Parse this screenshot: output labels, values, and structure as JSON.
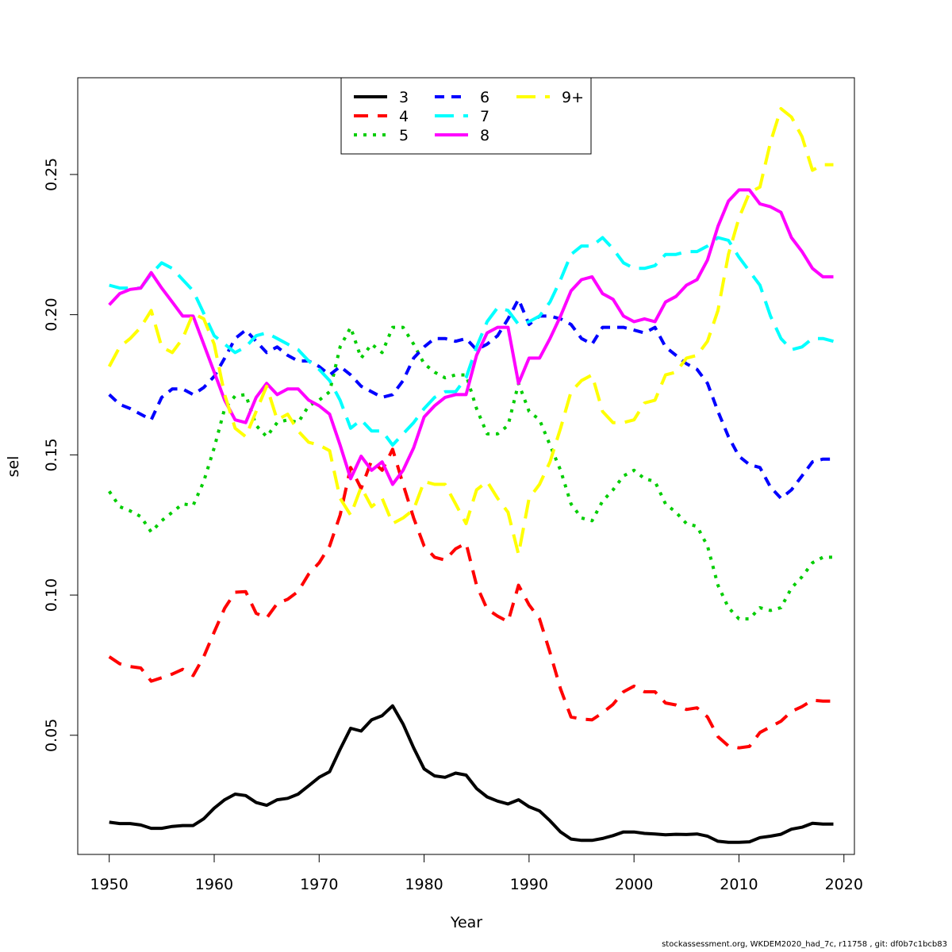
{
  "chart_data": {
    "type": "line",
    "title": "",
    "xlabel": "Year",
    "ylabel": "sel",
    "xlim": [
      1947,
      2021
    ],
    "ylim": [
      0.0075,
      0.2845
    ],
    "x_ticks": [
      1950,
      1960,
      1970,
      1980,
      1990,
      2000,
      2010,
      2020
    ],
    "y_ticks": [
      0.05,
      0.1,
      0.15,
      0.2,
      0.25
    ],
    "y_tick_labels": [
      "0.05",
      "0.10",
      "0.15",
      "0.20",
      "0.25"
    ],
    "grid": false,
    "legend_position": "top-center",
    "x": [
      1950,
      1951,
      1952,
      1953,
      1954,
      1955,
      1956,
      1957,
      1958,
      1959,
      1960,
      1961,
      1962,
      1963,
      1964,
      1965,
      1966,
      1967,
      1968,
      1969,
      1970,
      1971,
      1972,
      1973,
      1974,
      1975,
      1976,
      1977,
      1978,
      1979,
      1980,
      1981,
      1982,
      1983,
      1984,
      1985,
      1986,
      1987,
      1988,
      1989,
      1990,
      1991,
      1992,
      1993,
      1994,
      1995,
      1996,
      1997,
      1998,
      1999,
      2000,
      2001,
      2002,
      2003,
      2004,
      2005,
      2006,
      2007,
      2008,
      2009,
      2010,
      2011,
      2012,
      2013,
      2014,
      2015,
      2016,
      2017,
      2018,
      2019
    ],
    "series": [
      {
        "name": "3",
        "color": "#000000",
        "dash": "solid",
        "values": [
          0.019,
          0.0185,
          0.0185,
          0.018,
          0.0168,
          0.0168,
          0.0175,
          0.0178,
          0.0178,
          0.0202,
          0.024,
          0.027,
          0.029,
          0.0285,
          0.026,
          0.025,
          0.027,
          0.0275,
          0.029,
          0.032,
          0.035,
          0.037,
          0.045,
          0.0525,
          0.0515,
          0.0555,
          0.057,
          0.0605,
          0.054,
          0.0455,
          0.038,
          0.0355,
          0.035,
          0.0365,
          0.0358,
          0.031,
          0.028,
          0.0265,
          0.0255,
          0.027,
          0.0245,
          0.023,
          0.0195,
          0.0155,
          0.013,
          0.0125,
          0.0125,
          0.0132,
          0.0142,
          0.0155,
          0.0155,
          0.015,
          0.0148,
          0.0145,
          0.0147,
          0.0146,
          0.0148,
          0.014,
          0.0122,
          0.0118,
          0.0118,
          0.012,
          0.0135,
          0.014,
          0.0147,
          0.0165,
          0.0172,
          0.0186,
          0.0183,
          0.0183
        ]
      },
      {
        "name": "4",
        "color": "#ff0000",
        "dash": "long",
        "values": [
          0.078,
          0.0755,
          0.0745,
          0.074,
          0.0693,
          0.0705,
          0.0718,
          0.0735,
          0.0713,
          0.078,
          0.0868,
          0.0953,
          0.101,
          0.1012,
          0.0935,
          0.0918,
          0.097,
          0.0985,
          0.1013,
          0.1075,
          0.1115,
          0.1175,
          0.1285,
          0.1455,
          0.138,
          0.148,
          0.1445,
          0.152,
          0.1395,
          0.1275,
          0.1175,
          0.1135,
          0.1125,
          0.1165,
          0.1185,
          0.1035,
          0.095,
          0.0925,
          0.0905,
          0.1035,
          0.0965,
          0.0915,
          0.0795,
          0.0665,
          0.0565,
          0.0558,
          0.0555,
          0.058,
          0.061,
          0.0655,
          0.0675,
          0.0655,
          0.0655,
          0.0615,
          0.0608,
          0.0592,
          0.0598,
          0.0565,
          0.0495,
          0.0462,
          0.0455,
          0.046,
          0.051,
          0.053,
          0.055,
          0.0585,
          0.0602,
          0.0625,
          0.0622,
          0.0622
        ]
      },
      {
        "name": "5",
        "color": "#00cd00",
        "dash": "dotted",
        "values": [
          0.137,
          0.1315,
          0.13,
          0.128,
          0.1225,
          0.1265,
          0.1295,
          0.1325,
          0.132,
          0.1405,
          0.1525,
          0.1665,
          0.171,
          0.1715,
          0.1605,
          0.1565,
          0.1615,
          0.1625,
          0.1615,
          0.1675,
          0.1695,
          0.1725,
          0.1885,
          0.1955,
          0.1845,
          0.1895,
          0.1865,
          0.1955,
          0.1955,
          0.1895,
          0.1825,
          0.1795,
          0.1775,
          0.1785,
          0.1785,
          0.1665,
          0.1575,
          0.1575,
          0.1605,
          0.1755,
          0.1655,
          0.1625,
          0.1535,
          0.1445,
          0.1325,
          0.1275,
          0.1265,
          0.1335,
          0.1375,
          0.1425,
          0.1445,
          0.1415,
          0.1405,
          0.1325,
          0.1295,
          0.1255,
          0.1245,
          0.1175,
          0.1035,
          0.0955,
          0.0915,
          0.0915,
          0.0955,
          0.0945,
          0.0955,
          0.1025,
          0.1065,
          0.1115,
          0.1135,
          0.1135
        ]
      },
      {
        "name": "6",
        "color": "#0000ff",
        "dash": "dashed",
        "values": [
          0.1715,
          0.168,
          0.1665,
          0.1645,
          0.1625,
          0.1705,
          0.1735,
          0.1735,
          0.1715,
          0.174,
          0.178,
          0.1845,
          0.1915,
          0.1945,
          0.1905,
          0.1865,
          0.1885,
          0.1855,
          0.1835,
          0.1835,
          0.1815,
          0.1785,
          0.1815,
          0.1785,
          0.1745,
          0.1725,
          0.1705,
          0.1715,
          0.1765,
          0.1845,
          0.1885,
          0.1915,
          0.1915,
          0.1905,
          0.1915,
          0.1875,
          0.1895,
          0.1925,
          0.1985,
          0.2055,
          0.1965,
          0.1995,
          0.1995,
          0.1985,
          0.1965,
          0.1915,
          0.1895,
          0.1955,
          0.1955,
          0.1955,
          0.1945,
          0.1935,
          0.1955,
          0.1885,
          0.1855,
          0.1825,
          0.1805,
          0.1755,
          0.1655,
          0.1565,
          0.1495,
          0.1465,
          0.1455,
          0.1385,
          0.1345,
          0.1375,
          0.1425,
          0.1475,
          0.1485,
          0.1485
        ]
      },
      {
        "name": "7",
        "color": "#00ffff",
        "dash": "longdash",
        "values": [
          0.2105,
          0.2095,
          0.2095,
          0.2095,
          0.2145,
          0.2185,
          0.2165,
          0.2125,
          0.2085,
          0.2005,
          0.1925,
          0.1895,
          0.1865,
          0.1885,
          0.1925,
          0.1935,
          0.1915,
          0.1895,
          0.1875,
          0.1835,
          0.1805,
          0.1765,
          0.1695,
          0.1595,
          0.1625,
          0.1585,
          0.1585,
          0.1535,
          0.1575,
          0.1615,
          0.1665,
          0.1705,
          0.1725,
          0.1725,
          0.1775,
          0.1885,
          0.1975,
          0.2025,
          0.2015,
          0.1965,
          0.1975,
          0.1995,
          0.2045,
          0.2125,
          0.2215,
          0.2245,
          0.2245,
          0.2275,
          0.2235,
          0.2185,
          0.2165,
          0.2165,
          0.2175,
          0.2215,
          0.2215,
          0.2225,
          0.2225,
          0.2245,
          0.2275,
          0.2265,
          0.2205,
          0.2155,
          0.2105,
          0.1995,
          0.1915,
          0.1875,
          0.1885,
          0.1915,
          0.1915,
          0.1905
        ]
      },
      {
        "name": "8",
        "color": "#ff00ff",
        "dash": "solid",
        "values": [
          0.2035,
          0.2075,
          0.209,
          0.2095,
          0.215,
          0.2095,
          0.2045,
          0.1995,
          0.1995,
          0.1895,
          0.1795,
          0.1695,
          0.1625,
          0.1615,
          0.1705,
          0.1755,
          0.1715,
          0.1735,
          0.1735,
          0.1695,
          0.1675,
          0.1645,
          0.1535,
          0.1415,
          0.1495,
          0.1445,
          0.1475,
          0.1395,
          0.1445,
          0.1525,
          0.1635,
          0.1675,
          0.1705,
          0.1715,
          0.1715,
          0.1855,
          0.1935,
          0.1955,
          0.1955,
          0.1755,
          0.1845,
          0.1845,
          0.1915,
          0.1995,
          0.2085,
          0.2125,
          0.2135,
          0.2075,
          0.2055,
          0.1995,
          0.1975,
          0.1985,
          0.1975,
          0.2045,
          0.2065,
          0.2105,
          0.2125,
          0.2195,
          0.2315,
          0.2405,
          0.2445,
          0.2445,
          0.2395,
          0.2385,
          0.2365,
          0.2275,
          0.2225,
          0.2165,
          0.2135,
          0.2135
        ]
      },
      {
        "name": "9+",
        "color": "#ffff00",
        "dash": "longdash",
        "values": [
          0.1815,
          0.1885,
          0.1915,
          0.1955,
          0.2015,
          0.1885,
          0.1865,
          0.1915,
          0.2005,
          0.1985,
          0.1895,
          0.1715,
          0.1595,
          0.1565,
          0.1655,
          0.1745,
          0.1625,
          0.1645,
          0.1585,
          0.1545,
          0.1535,
          0.1515,
          0.1345,
          0.1285,
          0.1385,
          0.1315,
          0.1345,
          0.1255,
          0.1275,
          0.1305,
          0.1405,
          0.1395,
          0.1395,
          0.1325,
          0.1255,
          0.1375,
          0.1405,
          0.1345,
          0.1295,
          0.1145,
          0.1345,
          0.1395,
          0.1475,
          0.1595,
          0.1725,
          0.1765,
          0.1785,
          0.1655,
          0.1615,
          0.1615,
          0.1625,
          0.1685,
          0.1695,
          0.1785,
          0.1795,
          0.1845,
          0.1855,
          0.1905,
          0.2015,
          0.2215,
          0.2345,
          0.2435,
          0.2455,
          0.2615,
          0.2735,
          0.2705,
          0.2635,
          0.2515,
          0.2535,
          0.2535
        ]
      }
    ]
  },
  "footer": {
    "text": "stockassessment.org, WKDEM2020_had_7c, r11758 , git: df0b7c1bcb83"
  }
}
